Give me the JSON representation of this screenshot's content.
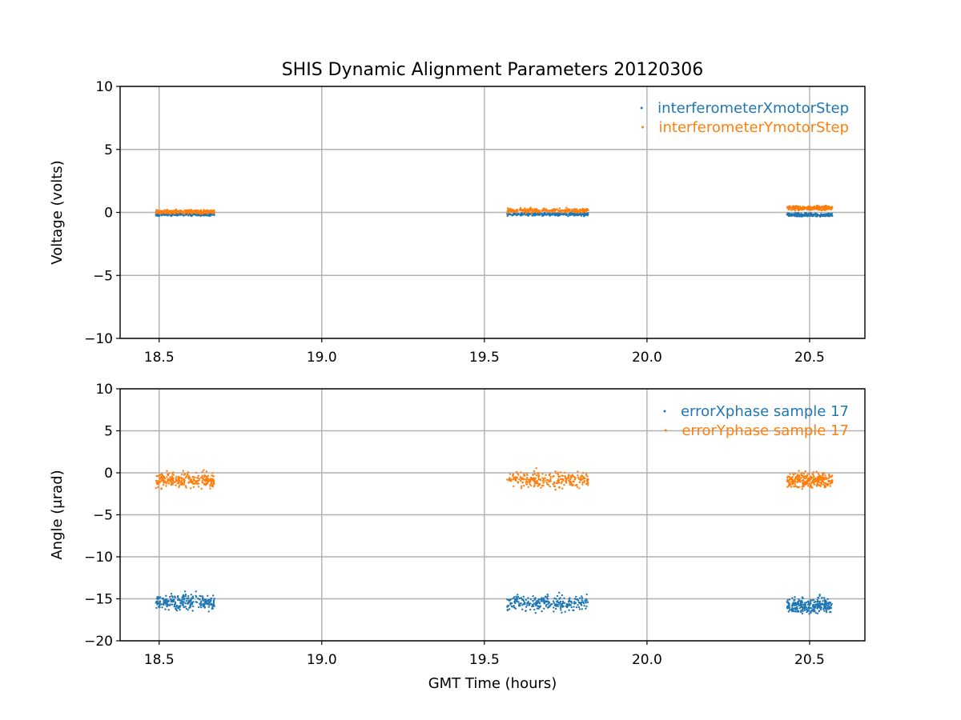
{
  "figure": {
    "title": "SHIS Dynamic Alignment Parameters 20120306",
    "xlabel": "GMT Time (hours)",
    "colors": {
      "series1": "#1f77b4",
      "series2": "#ff7f0e",
      "grid": "#b0b0b0"
    }
  },
  "chart_data": [
    {
      "type": "scatter",
      "title": "SHIS Dynamic Alignment Parameters 20120306",
      "xlabel": "",
      "ylabel": "Voltage (volts)",
      "xlim": [
        18.38,
        20.67
      ],
      "ylim": [
        -10,
        10
      ],
      "xticks": [
        18.5,
        19.0,
        19.5,
        20.0,
        20.5
      ],
      "xtick_labels": [
        "18.5",
        "19.0",
        "19.5",
        "20.0",
        "20.5"
      ],
      "yticks": [
        10,
        5,
        0,
        -5,
        -10
      ],
      "ytick_labels": [
        "10",
        "5",
        "0",
        "−5",
        "−10"
      ],
      "grid": true,
      "legend_position": "top-right",
      "segments": [
        [
          18.49,
          18.67
        ],
        [
          19.57,
          19.82
        ],
        [
          20.43,
          20.57
        ]
      ],
      "series": [
        {
          "name": "interferometerXmotorStep",
          "color": "#1f77b4",
          "segment_means": [
            -0.15,
            -0.15,
            -0.2
          ],
          "segment_spread": 0.06
        },
        {
          "name": "interferometerYmotorStep",
          "color": "#ff7f0e",
          "segment_means": [
            0.05,
            0.15,
            0.35
          ],
          "segment_spread": 0.08
        }
      ]
    },
    {
      "type": "scatter",
      "title": "",
      "xlabel": "GMT Time (hours)",
      "ylabel": "Angle (μrad)",
      "xlim": [
        18.38,
        20.67
      ],
      "ylim": [
        -20,
        10
      ],
      "xticks": [
        18.5,
        19.0,
        19.5,
        20.0,
        20.5
      ],
      "xtick_labels": [
        "18.5",
        "19.0",
        "19.5",
        "20.0",
        "20.5"
      ],
      "yticks": [
        10,
        5,
        0,
        -5,
        -10,
        -15,
        -20
      ],
      "ytick_labels": [
        "10",
        "5",
        "0",
        "−5",
        "−10",
        "−15",
        "−20"
      ],
      "grid": true,
      "legend_position": "top-right",
      "segments": [
        [
          18.49,
          18.67
        ],
        [
          19.57,
          19.82
        ],
        [
          20.43,
          20.57
        ]
      ],
      "series": [
        {
          "name": "errorXphase sample 17",
          "color": "#1f77b4",
          "segment_means": [
            -15.4,
            -15.5,
            -15.8
          ],
          "segment_spread": 0.45
        },
        {
          "name": "errorYphase sample 17",
          "color": "#ff7f0e",
          "segment_means": [
            -0.9,
            -0.8,
            -0.9
          ],
          "segment_spread": 0.45
        }
      ]
    }
  ]
}
